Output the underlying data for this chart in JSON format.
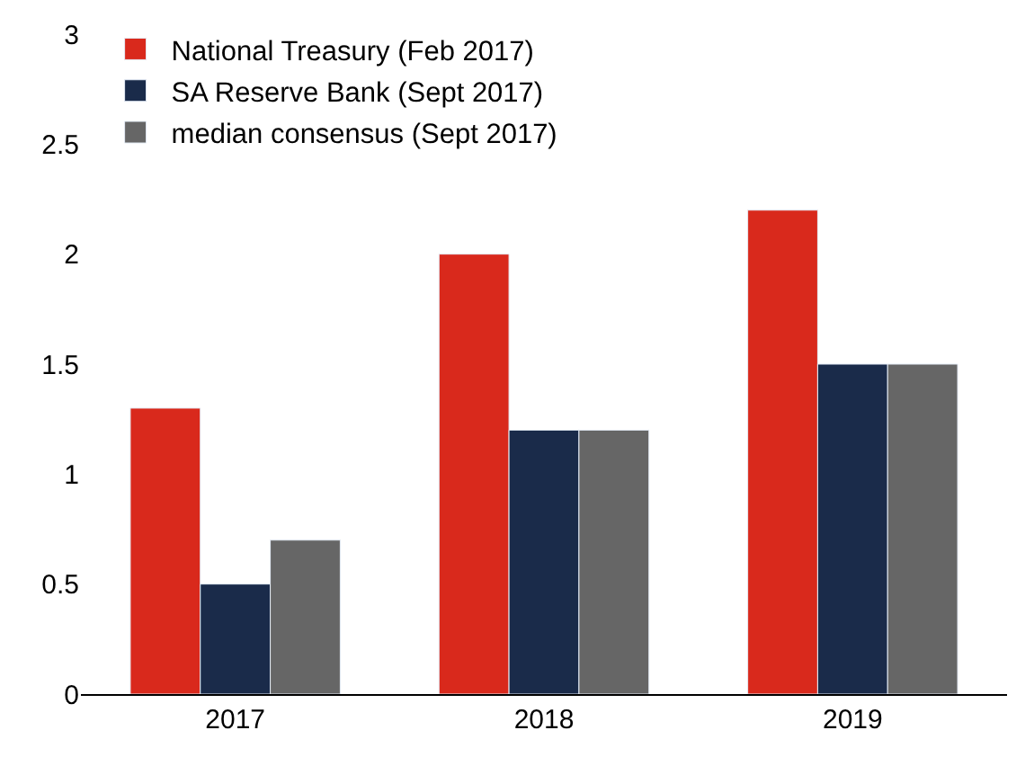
{
  "chart_data": {
    "type": "bar",
    "categories": [
      "2017",
      "2018",
      "2019"
    ],
    "series": [
      {
        "name": "National Treasury (Feb 2017)",
        "color": "#d9291c",
        "values": [
          1.3,
          2.0,
          2.2
        ]
      },
      {
        "name": "SA Reserve Bank (Sept 2017)",
        "color": "#1a2b4a",
        "values": [
          0.5,
          1.2,
          1.5
        ]
      },
      {
        "name": "median consensus (Sept 2017)",
        "color": "#666666",
        "values": [
          0.7,
          1.2,
          1.5
        ]
      }
    ],
    "ylim": [
      0,
      3
    ],
    "yticks": [
      0,
      0.5,
      1,
      1.5,
      2,
      2.5,
      3
    ],
    "legend": "top left"
  }
}
